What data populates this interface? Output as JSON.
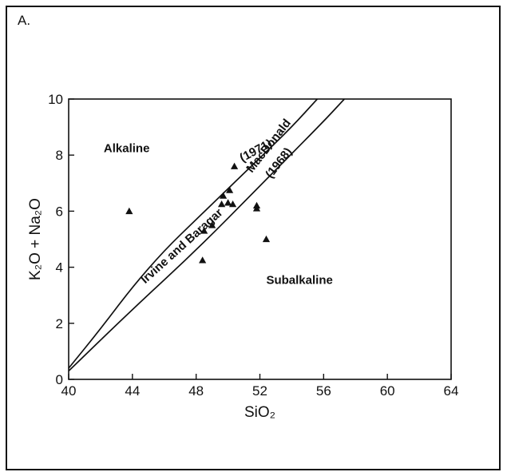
{
  "panel_label": "A.",
  "chart_data": {
    "type": "scatter",
    "xlabel": "SiO₂",
    "ylabel": "K₂O + Na₂O",
    "xlim": [
      40,
      64
    ],
    "ylim": [
      0,
      10
    ],
    "xticks": [
      40,
      44,
      48,
      52,
      56,
      60,
      64
    ],
    "yticks": [
      0,
      2,
      4,
      6,
      8,
      10
    ],
    "grid": false,
    "marker": "filled-triangle",
    "points": [
      {
        "x": 43.8,
        "y": 6.0
      },
      {
        "x": 48.4,
        "y": 4.25
      },
      {
        "x": 48.5,
        "y": 5.3
      },
      {
        "x": 49.0,
        "y": 5.5
      },
      {
        "x": 49.6,
        "y": 6.25
      },
      {
        "x": 49.7,
        "y": 6.55
      },
      {
        "x": 50.0,
        "y": 6.3
      },
      {
        "x": 50.1,
        "y": 6.75
      },
      {
        "x": 50.3,
        "y": 6.25
      },
      {
        "x": 50.4,
        "y": 7.6
      },
      {
        "x": 51.8,
        "y": 6.1
      },
      {
        "x": 51.8,
        "y": 6.2
      },
      {
        "x": 52.4,
        "y": 5.0
      }
    ],
    "curves": [
      {
        "label": "Irvine and Baragar (1971)",
        "points": [
          [
            40,
            0.4
          ],
          [
            42,
            1.8
          ],
          [
            44,
            3.3
          ],
          [
            46,
            4.6
          ],
          [
            48,
            5.7
          ],
          [
            50,
            6.8
          ],
          [
            52,
            7.9
          ],
          [
            54,
            9.0
          ],
          [
            55.6,
            10.0
          ]
        ]
      },
      {
        "label": "MacDonald (1968)",
        "points": [
          [
            40,
            0.3
          ],
          [
            44,
            2.5
          ],
          [
            48,
            4.6
          ],
          [
            52,
            6.9
          ],
          [
            56,
            9.2
          ],
          [
            57.3,
            10.0
          ]
        ]
      }
    ],
    "region_labels": [
      {
        "text": "Alkaline",
        "x": 42.2,
        "y": 8.1
      },
      {
        "text": "Subalkaline",
        "x": 52.4,
        "y": 3.4
      }
    ],
    "curve_labels": [
      {
        "text": "Irvine and Baragar",
        "x": 44.8,
        "y": 3.4,
        "angle": -42
      },
      {
        "text": "(1971)",
        "x": 50.9,
        "y": 7.75,
        "angle": -28
      },
      {
        "text": "MacDonald",
        "x": 51.5,
        "y": 7.35,
        "angle": -52
      },
      {
        "text": "(1968)",
        "x": 52.7,
        "y": 7.15,
        "angle": -52
      }
    ]
  }
}
